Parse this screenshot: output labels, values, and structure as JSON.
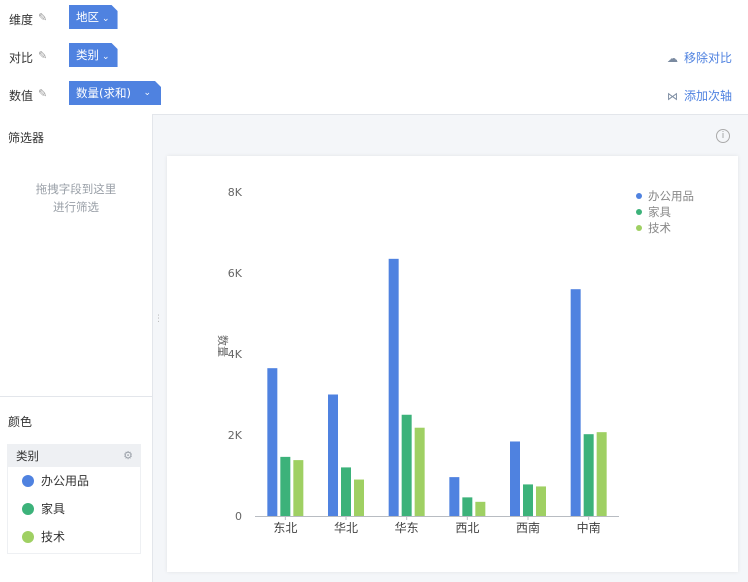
{
  "shelves": {
    "dimension": {
      "label": "维度",
      "pill": "地区"
    },
    "compare": {
      "label": "对比",
      "pill": "类别",
      "action": "移除对比"
    },
    "value": {
      "label": "数值",
      "pill": "数量(求和)",
      "action": "添加次轴"
    }
  },
  "filter": {
    "title": "筛选器",
    "hint_line1": "拖拽字段到这里",
    "hint_line2": "进行筛选"
  },
  "color": {
    "title": "颜色",
    "legend_header": "类别",
    "items": [
      {
        "label": "办公用品",
        "color": "#4f82e0"
      },
      {
        "label": "家具",
        "color": "#3cb27a"
      },
      {
        "label": "技术",
        "color": "#9fd063"
      }
    ]
  },
  "chart_data": {
    "type": "bar",
    "categories": [
      "东北",
      "华北",
      "华东",
      "西北",
      "西南",
      "中南"
    ],
    "series": [
      {
        "name": "办公用品",
        "color": "#4f82e0",
        "values": [
          3650,
          3000,
          6350,
          960,
          1840,
          5600
        ]
      },
      {
        "name": "家具",
        "color": "#3cb27a",
        "values": [
          1460,
          1200,
          2500,
          460,
          780,
          2020
        ]
      },
      {
        "name": "技术",
        "color": "#9fd063",
        "values": [
          1380,
          900,
          2180,
          350,
          730,
          2070
        ]
      }
    ],
    "ylabel": "数量",
    "ylim": [
      0,
      8000
    ],
    "yticks": [
      0,
      2000,
      4000,
      6000,
      8000
    ],
    "ytick_labels": [
      "0",
      "2K",
      "4K",
      "6K",
      "8K"
    ],
    "legend_position": "top-right",
    "grid": false
  }
}
